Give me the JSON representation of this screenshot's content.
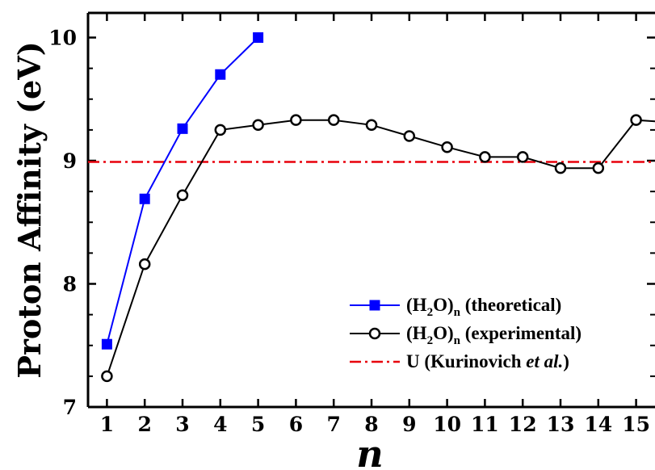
{
  "chart_data": {
    "type": "line",
    "xlabel": "n",
    "ylabel": "Proton Affinity (eV)",
    "xlim": [
      0.5,
      15.5
    ],
    "ylim": [
      7,
      10.2
    ],
    "xticks": [
      1,
      2,
      3,
      4,
      5,
      6,
      7,
      8,
      9,
      10,
      11,
      12,
      13,
      14,
      15
    ],
    "yticks": [
      7,
      8,
      9,
      10
    ],
    "grid": false,
    "legend_position": "bottom-right",
    "series": [
      {
        "name": "theoretical",
        "legend_label": {
          "prefix": "(H",
          "sub1": "2",
          "mid": "O)",
          "sub2": "n",
          "suffix": " (theoretical)"
        },
        "color": "#0000ff",
        "marker": "filled-square",
        "x": [
          1,
          2,
          3,
          4,
          5
        ],
        "y": [
          7.51,
          8.69,
          9.26,
          9.7,
          10.0
        ]
      },
      {
        "name": "experimental",
        "legend_label": {
          "prefix": "(H",
          "sub1": "2",
          "mid": "O)",
          "sub2": "n",
          "suffix": " (experimental)"
        },
        "color": "#000000",
        "marker": "open-circle",
        "x": [
          1,
          2,
          3,
          4,
          5,
          6,
          7,
          8,
          9,
          10,
          11,
          12,
          13,
          14,
          15,
          16
        ],
        "y": [
          7.25,
          8.16,
          8.72,
          9.25,
          9.29,
          9.33,
          9.33,
          9.29,
          9.2,
          9.11,
          9.03,
          9.03,
          8.94,
          8.94,
          9.33,
          9.31
        ]
      }
    ],
    "reference_line": {
      "name": "U (Kurinovich et al.)",
      "legend_label": {
        "prefix": "U (Kurinovich ",
        "italic": "et al.",
        "suffix": ")"
      },
      "color": "#e8000b",
      "style": "dash-dot",
      "y": 8.99
    }
  }
}
